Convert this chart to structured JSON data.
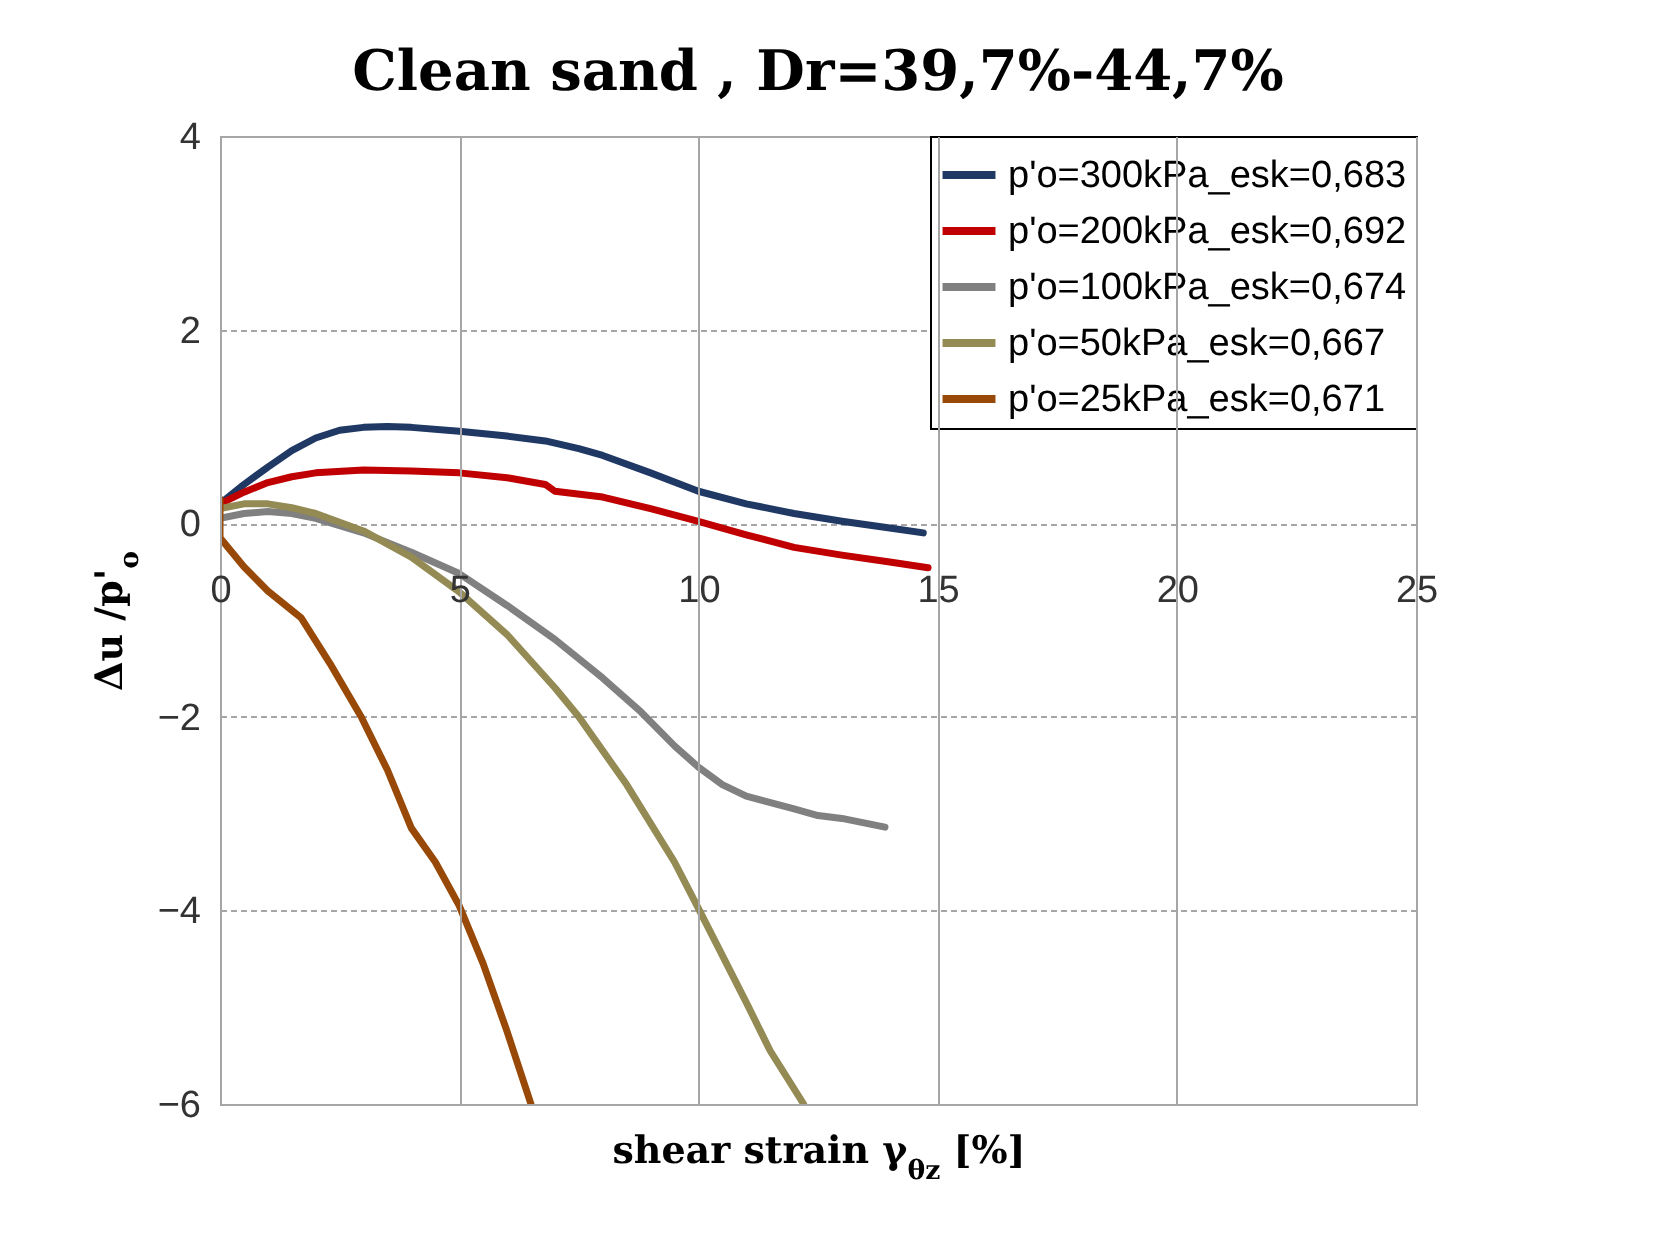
{
  "chart_data": {
    "type": "line",
    "title": "Clean sand  ,  Dr=39,7%-44,7%",
    "xlabel": "shear strain γ$_{θz}$ [%]",
    "ylabel": "Δu /p'$_{o}$",
    "xlim": [
      0,
      25
    ],
    "xticks": [
      0,
      5,
      10,
      15,
      20,
      25
    ],
    "ylim": [
      -6,
      4
    ],
    "yticks": [
      -6,
      -4,
      -2,
      0,
      2,
      4
    ],
    "grid": true,
    "legend": "top right",
    "marker": "none",
    "line_style": "solid",
    "series": [
      {
        "name": "p'o=300kPa_esk=0,683",
        "color": "#1f3864",
        "x": [
          0,
          0.5,
          1,
          1.5,
          2,
          2.5,
          3,
          3.5,
          4,
          5,
          6,
          6.8,
          7.5,
          8,
          9,
          10,
          11,
          12,
          13,
          14,
          14.7
        ],
        "values": [
          0.2,
          0.4,
          0.58,
          0.75,
          0.88,
          0.96,
          0.99,
          1.0,
          0.99,
          0.95,
          0.9,
          0.85,
          0.77,
          0.7,
          0.52,
          0.33,
          0.2,
          0.1,
          0.02,
          -0.05,
          -0.1
        ]
      },
      {
        "name": "p'o=200kPa_esk=0,692",
        "color": "#c00000",
        "x": [
          0,
          0.5,
          1,
          1.5,
          2,
          3,
          4,
          5,
          6,
          6.8,
          7,
          8,
          9,
          10,
          11,
          12,
          13,
          14,
          14.8
        ],
        "values": [
          0.2,
          0.32,
          0.42,
          0.48,
          0.52,
          0.55,
          0.54,
          0.52,
          0.47,
          0.4,
          0.33,
          0.27,
          0.15,
          0.02,
          -0.12,
          -0.25,
          -0.33,
          -0.4,
          -0.46
        ]
      },
      {
        "name": "p'o=100kPa_esk=0,674",
        "color": "#808080",
        "x": [
          0,
          0.5,
          1,
          1.5,
          2,
          3,
          4,
          5,
          6,
          7,
          8,
          8.8,
          9.5,
          10,
          10.5,
          11,
          12,
          12.5,
          13,
          13.9
        ],
        "values": [
          0.05,
          0.1,
          0.12,
          0.1,
          0.05,
          -0.1,
          -0.3,
          -0.52,
          -0.85,
          -1.2,
          -1.6,
          -1.95,
          -2.3,
          -2.52,
          -2.7,
          -2.82,
          -2.95,
          -3.02,
          -3.05,
          -3.14
        ]
      },
      {
        "name": "p'o=50kPa_esk=0,667",
        "color": "#948a54",
        "x": [
          0,
          0.5,
          1,
          1.5,
          2,
          3,
          4,
          5,
          6,
          7,
          7.5,
          8.5,
          9.5,
          10,
          11,
          11.5,
          12.2
        ],
        "values": [
          0.15,
          0.2,
          0.2,
          0.16,
          0.1,
          -0.08,
          -0.35,
          -0.71,
          -1.15,
          -1.7,
          -2.0,
          -2.7,
          -3.5,
          -3.98,
          -4.95,
          -5.45,
          -6.0
        ]
      },
      {
        "name": "p'o=25kPa_esk=0,671",
        "color": "#984807",
        "x": [
          0,
          0,
          0.5,
          1,
          1.7,
          2.3,
          2.95,
          3.5,
          4,
          4.5,
          5,
          5.5,
          6,
          6.5
        ],
        "values": [
          0.25,
          -0.15,
          -0.45,
          -0.7,
          -0.98,
          -1.45,
          -2.0,
          -2.55,
          -3.15,
          -3.5,
          -3.95,
          -4.55,
          -5.25,
          -6.0
        ]
      }
    ]
  }
}
